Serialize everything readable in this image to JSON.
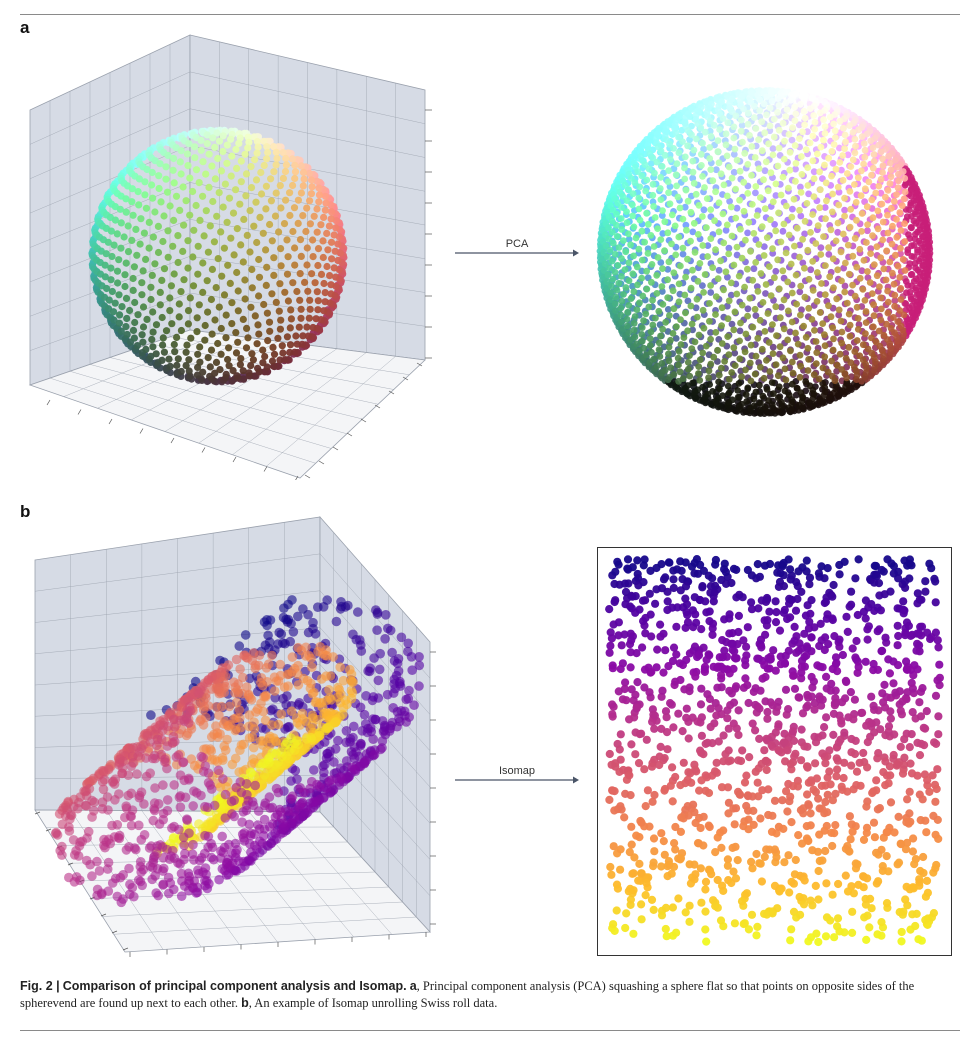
{
  "panels": {
    "a": {
      "label": "a",
      "arrow_label": "PCA",
      "method": "Principal component analysis (PCA)",
      "left_view": "3D sphere of points coloured by position",
      "right_view": "2D projection of sphere"
    },
    "b": {
      "label": "b",
      "arrow_label": "Isomap",
      "method": "Isomap",
      "left_view": "3D Swiss roll coloured by plasma colormap",
      "right_view": "2D unrolled embedding"
    }
  },
  "caption": {
    "fig_label": "Fig. 2 |",
    "title": "Comparison of principal component analysis and Isomap.",
    "a_label": "a",
    "a_text": ", Principal component analysis (PCA) squashing a sphere flat so that points on opposite sides of the spherevend are found up next to each other.",
    "b_label": "b",
    "b_text": ", An example of Isomap unrolling Swiss roll data."
  },
  "colors": {
    "pane_fill": "#d6dbe5",
    "floor_fill": "#f4f5f7",
    "grid_line": "#9aa1ad",
    "arrow": "#4a5568",
    "rule": "#8a8a8a"
  },
  "colormap": "plasma"
}
